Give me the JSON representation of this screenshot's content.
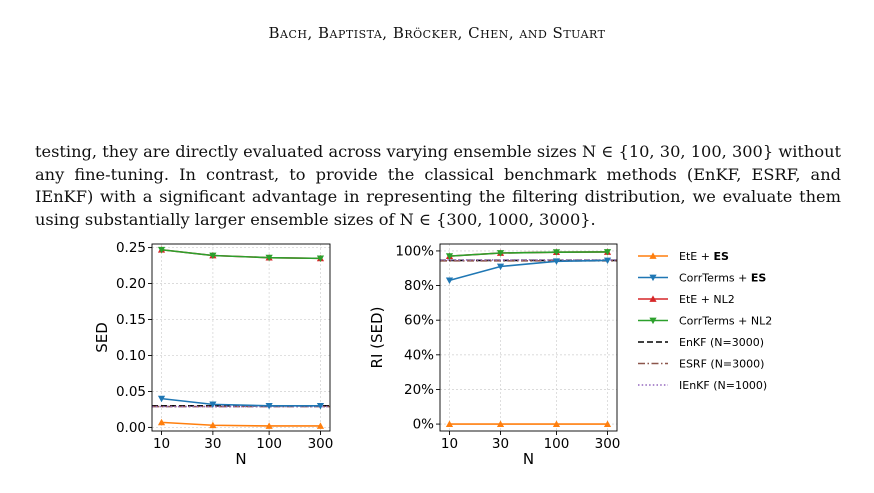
{
  "header": "Bach, Baptista, Bröcker, Chen, and Stuart",
  "paragraph": "testing, they are directly evaluated across varying ensemble sizes N ∈ {10, 30, 100, 300} without any fine-tuning. In contrast, to provide the classical benchmark methods (EnKF, ESRF, and IEnKF) with a significant advantage in representing the filtering distribution, we evaluate them using substantially larger ensemble sizes of N ∈ {300, 1000, 3000}.",
  "chart_data": [
    {
      "type": "line",
      "xlabel": "N",
      "ylabel": "SED",
      "x_scale": "log",
      "x": [
        10,
        30,
        100,
        300
      ],
      "xticks": [
        "10",
        "30",
        "100",
        "300"
      ],
      "ylim": [
        -0.005,
        0.255
      ],
      "yticks": [
        "0.00",
        "0.05",
        "0.10",
        "0.15",
        "0.20",
        "0.25"
      ],
      "ytick_values": [
        0,
        0.05,
        0.1,
        0.15,
        0.2,
        0.25
      ],
      "grid": true,
      "series": [
        {
          "name": "EtE + ES",
          "color": "#ff7f0e",
          "marker": "triangle-up",
          "values": [
            0.007,
            0.003,
            0.002,
            0.002
          ]
        },
        {
          "name": "CorrTerms + ES",
          "color": "#1f77b4",
          "marker": "triangle-down",
          "values": [
            0.04,
            0.032,
            0.03,
            0.03
          ]
        },
        {
          "name": "EtE + NL2",
          "color": "#d62728",
          "marker": "triangle-up",
          "values": [
            0.247,
            0.239,
            0.236,
            0.235
          ]
        },
        {
          "name": "CorrTerms + NL2",
          "color": "#2ca02c",
          "marker": "triangle-down",
          "values": [
            0.247,
            0.239,
            0.236,
            0.235
          ]
        }
      ],
      "reference_lines": [
        {
          "name": "EnKF (N=3000)",
          "color": "#000000",
          "style": "dashed",
          "value": 0.03
        },
        {
          "name": "ESRF (N=3000)",
          "color": "#8c564b",
          "style": "dashdot",
          "value": 0.029
        },
        {
          "name": "IEnKF (N=1000)",
          "color": "#9467bd",
          "style": "dotted",
          "value": 0.029
        }
      ]
    },
    {
      "type": "line",
      "xlabel": "N",
      "ylabel": "RI (SED)",
      "x_scale": "log",
      "x": [
        10,
        30,
        100,
        300
      ],
      "xticks": [
        "10",
        "30",
        "100",
        "300"
      ],
      "ylim": [
        -4,
        104
      ],
      "yticks": [
        "0%",
        "20%",
        "40%",
        "60%",
        "80%",
        "100%"
      ],
      "ytick_values": [
        0,
        20,
        40,
        60,
        80,
        100
      ],
      "grid": true,
      "series": [
        {
          "name": "EtE + ES",
          "color": "#ff7f0e",
          "marker": "triangle-up",
          "values": [
            0,
            0,
            0,
            0
          ]
        },
        {
          "name": "CorrTerms + ES",
          "color": "#1f77b4",
          "marker": "triangle-down",
          "values": [
            83,
            91,
            94,
            94.5
          ]
        },
        {
          "name": "EtE + NL2",
          "color": "#d62728",
          "marker": "triangle-up",
          "values": [
            97,
            98.8,
            99.3,
            99.4
          ]
        },
        {
          "name": "CorrTerms + NL2",
          "color": "#2ca02c",
          "marker": "triangle-down",
          "values": [
            97,
            98.8,
            99.3,
            99.4
          ]
        }
      ],
      "reference_lines": [
        {
          "name": "EnKF (N=3000)",
          "color": "#000000",
          "style": "dashed",
          "value": 94.5
        },
        {
          "name": "ESRF (N=3000)",
          "color": "#8c564b",
          "style": "dashdot",
          "value": 94.3
        },
        {
          "name": "IEnKF (N=1000)",
          "color": "#9467bd",
          "style": "dotted",
          "value": 94.8
        }
      ]
    }
  ],
  "legend": [
    {
      "label_plain": "EtE + ",
      "label_bold": "ES",
      "color": "#ff7f0e",
      "kind": "marker",
      "marker": "triangle-up"
    },
    {
      "label_plain": "CorrTerms + ",
      "label_bold": "ES",
      "color": "#1f77b4",
      "kind": "marker",
      "marker": "triangle-down"
    },
    {
      "label_plain": "EtE + NL2",
      "label_bold": "",
      "color": "#d62728",
      "kind": "marker",
      "marker": "triangle-up"
    },
    {
      "label_plain": "CorrTerms + NL2",
      "label_bold": "",
      "color": "#2ca02c",
      "kind": "marker",
      "marker": "triangle-down"
    },
    {
      "label_plain": "EnKF (N=3000)",
      "label_bold": "",
      "color": "#000000",
      "kind": "line",
      "style": "dashed"
    },
    {
      "label_plain": "ESRF (N=3000)",
      "label_bold": "",
      "color": "#8c564b",
      "kind": "line",
      "style": "dashdot"
    },
    {
      "label_plain": "IEnKF (N=1000)",
      "label_bold": "",
      "color": "#9467bd",
      "kind": "line",
      "style": "dotted"
    }
  ]
}
